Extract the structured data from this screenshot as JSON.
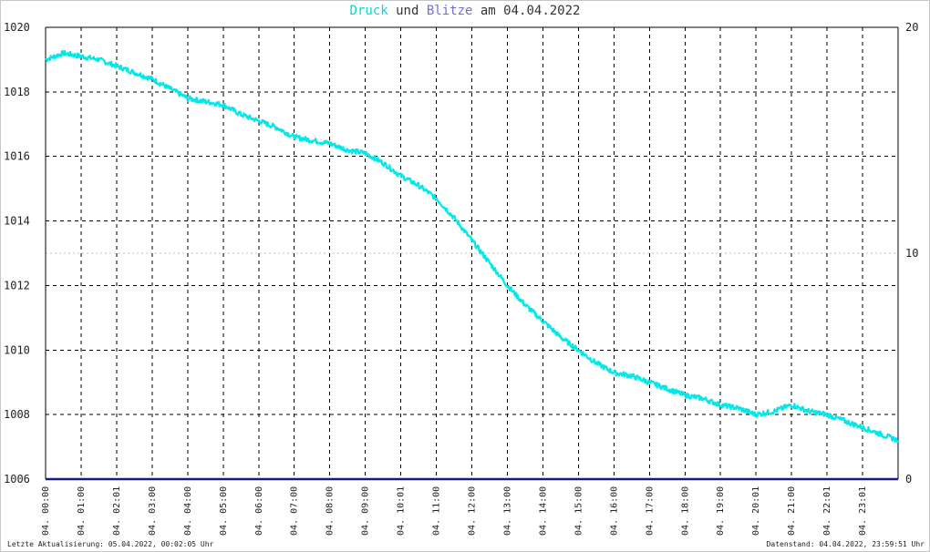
{
  "title": {
    "series1": "Druck",
    "word_und": "und",
    "series2": "Blitze",
    "word_am": "am",
    "date": "04.04.2022"
  },
  "colors": {
    "druck": "#00e8e8",
    "blitze": "#1a1a7a",
    "series2_title": "#7070d0",
    "grid": "#000000",
    "axis": "#000000"
  },
  "footer": {
    "left": "Letzte Aktualisierung: 05.04.2022, 00:02:05 Uhr",
    "right": "Datenstand: 04.04.2022, 23:59:51 Uhr"
  },
  "chart_data": {
    "type": "line",
    "title": "Druck und Blitze am 04.04.2022",
    "xlabel": "",
    "ylabel_left": "",
    "ylabel_right": "",
    "ylim_left": [
      1006,
      1020
    ],
    "ylim_right": [
      0,
      20
    ],
    "y_ticks_left": [
      "1020",
      "1018",
      "1016",
      "1014",
      "1012",
      "1010",
      "1008",
      "1006"
    ],
    "y_ticks_right": [
      "20",
      "10",
      "0"
    ],
    "x_range_hours": [
      0,
      24
    ],
    "x_ticks": [
      "04. 00:00",
      "04. 01:00",
      "04. 02:01",
      "04. 03:00",
      "04. 04:00",
      "04. 05:00",
      "04. 06:00",
      "04. 07:00",
      "04. 08:00",
      "04. 09:00",
      "04. 10:01",
      "04. 11:00",
      "04. 12:00",
      "04. 13:00",
      "04. 14:00",
      "04. 15:00",
      "04. 16:00",
      "04. 17:00",
      "04. 18:00",
      "04. 19:00",
      "04. 20:01",
      "04. 21:00",
      "04. 22:01",
      "04. 23:01"
    ],
    "grid": true,
    "series": [
      {
        "name": "Druck",
        "axis": "left",
        "x": [
          0,
          0.5,
          1,
          1.5,
          2,
          2.5,
          3,
          3.5,
          4,
          4.5,
          5,
          5.5,
          6,
          6.5,
          7,
          7.5,
          8,
          8.5,
          9,
          9.5,
          10,
          10.5,
          11,
          11.5,
          12,
          12.5,
          13,
          13.5,
          14,
          14.5,
          15,
          15.5,
          16,
          16.5,
          17,
          17.5,
          18,
          18.5,
          19,
          19.5,
          20,
          20.5,
          21,
          21.5,
          22,
          22.5,
          23,
          23.5,
          24
        ],
        "values": [
          1019.0,
          1019.2,
          1019.1,
          1019.0,
          1018.8,
          1018.6,
          1018.4,
          1018.1,
          1017.8,
          1017.7,
          1017.6,
          1017.3,
          1017.1,
          1016.9,
          1016.6,
          1016.5,
          1016.4,
          1016.2,
          1016.1,
          1015.8,
          1015.4,
          1015.1,
          1014.7,
          1014.1,
          1013.4,
          1012.7,
          1012.0,
          1011.4,
          1010.9,
          1010.4,
          1010.0,
          1009.6,
          1009.3,
          1009.2,
          1009.0,
          1008.8,
          1008.6,
          1008.5,
          1008.3,
          1008.2,
          1008.0,
          1008.1,
          1008.3,
          1008.1,
          1008.0,
          1007.8,
          1007.6,
          1007.4,
          1007.2
        ]
      },
      {
        "name": "Blitze",
        "axis": "right",
        "x": [
          0,
          24
        ],
        "values": [
          0,
          0
        ]
      }
    ]
  }
}
